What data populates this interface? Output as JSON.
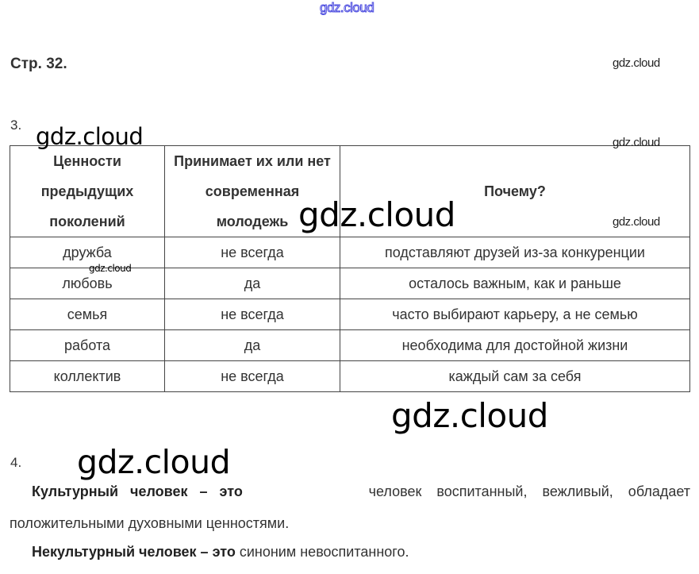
{
  "watermark": "gdz.cloud",
  "page_label": "Стр. 32.",
  "task3": {
    "number": "3.",
    "headers": [
      "Ценности предыдущих поколений",
      "Принимает их или нет современная молодежь",
      "Почему?"
    ],
    "rows": [
      [
        "дружба",
        "не всегда",
        "подставляют друзей из-за конкуренции"
      ],
      [
        "любовь",
        "да",
        "осталось важным, как и раньше"
      ],
      [
        "семья",
        "не всегда",
        "часто выбирают карьеру, а не семью"
      ],
      [
        "работа",
        "да",
        "необходима для достойной жизни"
      ],
      [
        "коллектив",
        "не всегда",
        "каждый сам за себя"
      ]
    ]
  },
  "task4": {
    "number": "4.",
    "p1_bold": "Культурный человек – это",
    "p1_text": "человек воспитанный, вежливый, обладает",
    "p1_cont": "положительными духовными ценностями.",
    "p2_bold": "Некультурный человек – это",
    "p2_text": "синоним невоспитанного."
  }
}
